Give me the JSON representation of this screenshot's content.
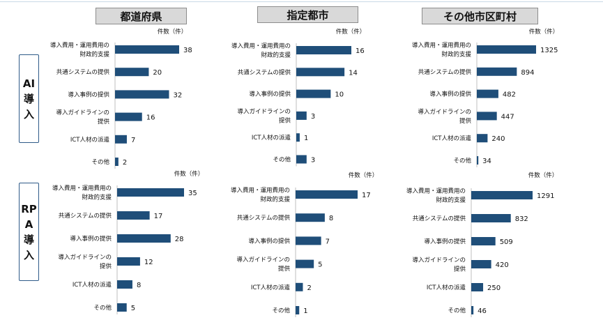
{
  "headers": {
    "prefectures": "都道府県",
    "designated_cities": "指定都市",
    "other_municipalities": "その他市区町村"
  },
  "rows": {
    "ai": "AI導入",
    "rpa": "RPA導入"
  },
  "bar_color": "#1f4e79",
  "chart_data": [
    {
      "type": "bar",
      "orientation": "horizontal",
      "group": "都道府県",
      "row": "AI導入",
      "unit_label": "件数（件）",
      "categories": [
        [
          "導入費用・運用費用の",
          "財政的支援"
        ],
        [
          "共通システムの提供"
        ],
        [
          "導入事例の提供"
        ],
        [
          "導入ガイドラインの",
          "提供"
        ],
        [
          "ICT人材の派遣"
        ],
        [
          "その他"
        ]
      ],
      "values": [
        38,
        20,
        32,
        16,
        7,
        2
      ]
    },
    {
      "type": "bar",
      "orientation": "horizontal",
      "group": "指定都市",
      "row": "AI導入",
      "unit_label": "件数（件）",
      "categories": [
        [
          "導入費用・運用費用の",
          "財政的支援"
        ],
        [
          "共通システムの提供"
        ],
        [
          "導入事例の提供"
        ],
        [
          "導入ガイドラインの",
          "提供"
        ],
        [
          "ICT人材の派遣"
        ],
        [
          "その他"
        ]
      ],
      "values": [
        16,
        14,
        10,
        3,
        1,
        3
      ]
    },
    {
      "type": "bar",
      "orientation": "horizontal",
      "group": "その他市区町村",
      "row": "AI導入",
      "unit_label": "件数（件）",
      "categories": [
        [
          "導入費用・運用費用の",
          "財政的支援"
        ],
        [
          "共通システムの提供"
        ],
        [
          "導入事例の提供"
        ],
        [
          "導入ガイドラインの",
          "提供"
        ],
        [
          "ICT人材の派遣"
        ],
        [
          "その他"
        ]
      ],
      "values": [
        1325,
        894,
        482,
        447,
        240,
        34
      ]
    },
    {
      "type": "bar",
      "orientation": "horizontal",
      "group": "都道府県",
      "row": "RPA導入",
      "unit_label": "件数（件）",
      "categories": [
        [
          "導入費用・運用費用の",
          "財政的支援"
        ],
        [
          "共通システムの提供"
        ],
        [
          "導入事例の提供"
        ],
        [
          "導入ガイドラインの",
          "提供"
        ],
        [
          "ICT人材の派遣"
        ],
        [
          "その他"
        ]
      ],
      "values": [
        35,
        17,
        28,
        12,
        8,
        5
      ]
    },
    {
      "type": "bar",
      "orientation": "horizontal",
      "group": "指定都市",
      "row": "RPA導入",
      "unit_label": "件数（件）",
      "categories": [
        [
          "導入費用・運用費用の",
          "財政的支援"
        ],
        [
          "共通システムの提供"
        ],
        [
          "導入事例の提供"
        ],
        [
          "導入ガイドラインの",
          "提供"
        ],
        [
          "ICT人材の派遣"
        ],
        [
          "その他"
        ]
      ],
      "values": [
        17,
        8,
        7,
        5,
        2,
        1
      ]
    },
    {
      "type": "bar",
      "orientation": "horizontal",
      "group": "その他市区町村",
      "row": "RPA導入",
      "unit_label": "件数（件）",
      "categories": [
        [
          "導入費用・運用費用の",
          "財政的支援"
        ],
        [
          "共通システムの提供"
        ],
        [
          "導入事例の提供"
        ],
        [
          "導入ガイドラインの",
          "提供"
        ],
        [
          "ICT人材の派遣"
        ],
        [
          "その他"
        ]
      ],
      "values": [
        1291,
        832,
        509,
        420,
        250,
        46
      ]
    }
  ]
}
